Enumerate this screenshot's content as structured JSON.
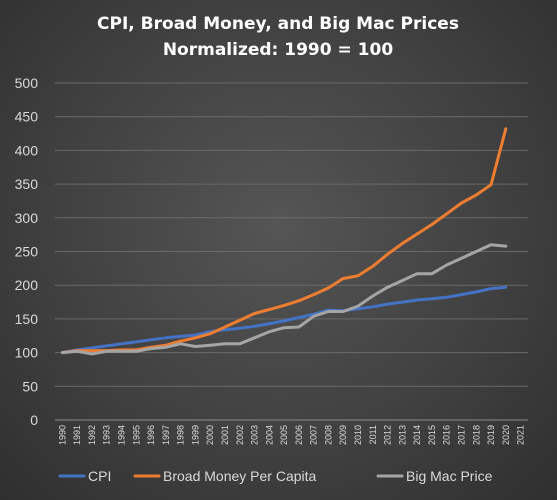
{
  "chart_data": {
    "type": "line",
    "title": [
      "CPI, Broad Money, and Big Mac Prices",
      "Normalized:  1990 = 100"
    ],
    "xlabel": "",
    "ylabel": "",
    "ylim": [
      0,
      500
    ],
    "yticks": [
      "0",
      "50",
      "100",
      "150",
      "200",
      "250",
      "300",
      "350",
      "400",
      "450",
      "500"
    ],
    "x": [
      "1990",
      "1991",
      "1992",
      "1993",
      "1994",
      "1995",
      "1996",
      "1997",
      "1998",
      "1999",
      "2000",
      "2001",
      "2002",
      "2003",
      "2004",
      "2005",
      "2006",
      "2007",
      "2008",
      "2009",
      "2010",
      "2011",
      "2012",
      "2013",
      "2014",
      "2015",
      "2016",
      "2017",
      "2018",
      "2019",
      "2020",
      "2021"
    ],
    "grid": true,
    "legend_position": "bottom",
    "series": [
      {
        "name": "CPI",
        "color": "#4472C4",
        "values": [
          100,
          104,
          107,
          110,
          113,
          116,
          119,
          122,
          124,
          126,
          131,
          134,
          136,
          139,
          143,
          147,
          152,
          157,
          163,
          162,
          165,
          168,
          172,
          175,
          178,
          180,
          182,
          186,
          190,
          195,
          197,
          null
        ]
      },
      {
        "name": "Broad Money Per Capita",
        "color": "#ED7D31",
        "values": [
          100,
          103,
          103,
          103,
          104,
          104,
          108,
          111,
          117,
          122,
          128,
          138,
          148,
          158,
          164,
          170,
          177,
          186,
          196,
          210,
          214,
          228,
          246,
          262,
          276,
          290,
          306,
          322,
          334,
          349,
          432,
          null
        ]
      },
      {
        "name": "Big Mac Price",
        "color": "#A5A5A5",
        "values": [
          100,
          102,
          98,
          102,
          102,
          102,
          106,
          108,
          113,
          109,
          111,
          113,
          113,
          122,
          131,
          137,
          138,
          154,
          161,
          161,
          169,
          184,
          197,
          207,
          217,
          217,
          230,
          240,
          250,
          260,
          258,
          null
        ]
      }
    ]
  }
}
